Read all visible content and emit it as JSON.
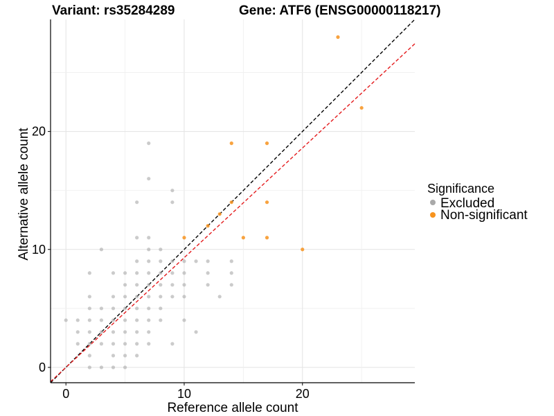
{
  "chart_data": {
    "type": "scatter",
    "title_left": "Variant: rs35284289",
    "title_right": "Gene: ATF6 (ENSG00000118217)",
    "xlabel": "Reference allele count",
    "ylabel": "Alternative allele count",
    "xlim": [
      -1.3,
      29.5
    ],
    "ylim": [
      -1.3,
      29.5
    ],
    "xticks": [
      0,
      10,
      20
    ],
    "yticks": [
      0,
      10,
      20
    ],
    "grid": true,
    "legend": {
      "title": "Significance",
      "position": "right",
      "entries": [
        {
          "label": "Excluded",
          "color": "#a9a9a9"
        },
        {
          "label": "Non-significant",
          "color": "#f7931e"
        }
      ]
    },
    "reference_lines": [
      {
        "name": "identity",
        "slope": 1.0,
        "intercept": 0,
        "color": "#000000",
        "dash": "dashed"
      },
      {
        "name": "fit",
        "slope": 0.93,
        "intercept": 0,
        "color": "#e41a1c",
        "dash": "dashed"
      }
    ],
    "series": [
      {
        "name": "Excluded",
        "color": "#a9a9a9",
        "points": [
          [
            0,
            4
          ],
          [
            1,
            4
          ],
          [
            1,
            3
          ],
          [
            1,
            2
          ],
          [
            2,
            8
          ],
          [
            2,
            6
          ],
          [
            2,
            5
          ],
          [
            2,
            4
          ],
          [
            2,
            3
          ],
          [
            2,
            2
          ],
          [
            2,
            1
          ],
          [
            2,
            0
          ],
          [
            3,
            10
          ],
          [
            3,
            5
          ],
          [
            3,
            4
          ],
          [
            3,
            3
          ],
          [
            3,
            2
          ],
          [
            3,
            0
          ],
          [
            4,
            8
          ],
          [
            4,
            6
          ],
          [
            4,
            5
          ],
          [
            4,
            4
          ],
          [
            4,
            3
          ],
          [
            4,
            2
          ],
          [
            4,
            1
          ],
          [
            4,
            0
          ],
          [
            5,
            8
          ],
          [
            5,
            7
          ],
          [
            5,
            6
          ],
          [
            5,
            5
          ],
          [
            5,
            4
          ],
          [
            5,
            3
          ],
          [
            5,
            2
          ],
          [
            5,
            1
          ],
          [
            5,
            0
          ],
          [
            6,
            14
          ],
          [
            6,
            11
          ],
          [
            6,
            9
          ],
          [
            6,
            8
          ],
          [
            6,
            7
          ],
          [
            6,
            6
          ],
          [
            6,
            5
          ],
          [
            6,
            4
          ],
          [
            6,
            3
          ],
          [
            6,
            2
          ],
          [
            6,
            1
          ],
          [
            7,
            19
          ],
          [
            7,
            16
          ],
          [
            7,
            11
          ],
          [
            7,
            10
          ],
          [
            7,
            9
          ],
          [
            7,
            8
          ],
          [
            7,
            7
          ],
          [
            7,
            6
          ],
          [
            7,
            5
          ],
          [
            7,
            4
          ],
          [
            7,
            3
          ],
          [
            7,
            2
          ],
          [
            8,
            10
          ],
          [
            8,
            9
          ],
          [
            8,
            8
          ],
          [
            8,
            7
          ],
          [
            8,
            6
          ],
          [
            8,
            5
          ],
          [
            8,
            4
          ],
          [
            9,
            15
          ],
          [
            9,
            14
          ],
          [
            9,
            9
          ],
          [
            9,
            8
          ],
          [
            9,
            7
          ],
          [
            9,
            6
          ],
          [
            9,
            2
          ],
          [
            10,
            9
          ],
          [
            10,
            8
          ],
          [
            10,
            7
          ],
          [
            10,
            6
          ],
          [
            10,
            4
          ],
          [
            11,
            9
          ],
          [
            11,
            3
          ],
          [
            12,
            9
          ],
          [
            12,
            8
          ],
          [
            12,
            7
          ],
          [
            13,
            6
          ],
          [
            14,
            9
          ],
          [
            14,
            8
          ],
          [
            14,
            7
          ]
        ]
      },
      {
        "name": "Non-significant",
        "color": "#f7931e",
        "points": [
          [
            10,
            11
          ],
          [
            12,
            12
          ],
          [
            13,
            13
          ],
          [
            14,
            19
          ],
          [
            14,
            14
          ],
          [
            15,
            11
          ],
          [
            17,
            19
          ],
          [
            17,
            14
          ],
          [
            17,
            11
          ],
          [
            20,
            10
          ],
          [
            23,
            28
          ],
          [
            25,
            22
          ]
        ]
      }
    ]
  }
}
